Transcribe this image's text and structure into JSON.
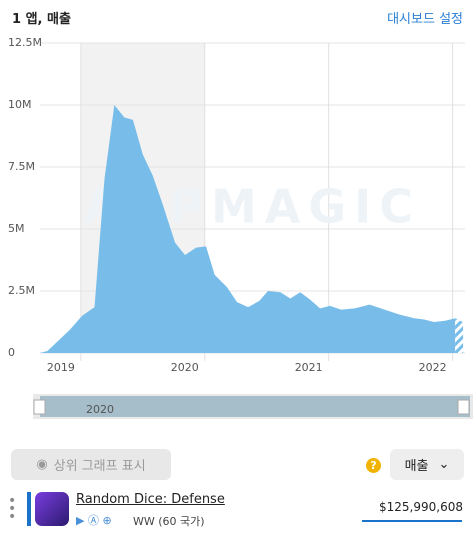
{
  "header": {
    "title": "1 앱, 매출",
    "settings": "대시보드 설정"
  },
  "chart_data": {
    "type": "area",
    "watermark": "APPMAGIC",
    "color": "#78bde9",
    "x": [
      2018.67,
      2018.73,
      2018.91,
      2019.01,
      2019.11,
      2019.19,
      2019.27,
      2019.35,
      2019.42,
      2019.5,
      2019.58,
      2019.66,
      2019.76,
      2019.84,
      2019.93,
      2020.01,
      2020.08,
      2020.18,
      2020.26,
      2020.35,
      2020.44,
      2020.51,
      2020.61,
      2020.69,
      2020.77,
      2020.85,
      2020.93,
      2021.01,
      2021.1,
      2021.21,
      2021.33,
      2021.45,
      2021.57,
      2021.69,
      2021.77,
      2021.85,
      2021.94,
      2022.02
    ],
    "values": [
      0,
      80000,
      930000,
      1500000,
      1850000,
      7000000,
      10000000,
      9500000,
      9400000,
      8000000,
      7150000,
      6000000,
      4450000,
      3950000,
      4250000,
      4300000,
      3150000,
      2650000,
      2050000,
      1850000,
      2100000,
      2500000,
      2450000,
      2200000,
      2450000,
      2150000,
      1800000,
      1900000,
      1750000,
      1800000,
      1950000,
      1750000,
      1550000,
      1400000,
      1350000,
      1250000,
      1300000,
      1400000
    ],
    "xlim": [
      2018.67,
      2022.1
    ],
    "xticks": [
      2019,
      2020,
      2021,
      2022
    ],
    "ylim": [
      0,
      12500000
    ],
    "yticks": [
      {
        "value": 0,
        "label": "0"
      },
      {
        "value": 2500000,
        "label": "2.5M"
      },
      {
        "value": 5000000,
        "label": "5M"
      },
      {
        "value": 7500000,
        "label": "7.5M"
      },
      {
        "value": 10000000,
        "label": "10M"
      },
      {
        "value": 12500000,
        "label": "12.5M"
      }
    ],
    "highlight_year": 2020
  },
  "controls": {
    "show_top": "상위 그래프 표시",
    "metric": "매출",
    "help": "?"
  },
  "app": {
    "name": "Random Dice: Defense",
    "region": "WW (60 국가)",
    "revenue": "$125,990,608"
  }
}
